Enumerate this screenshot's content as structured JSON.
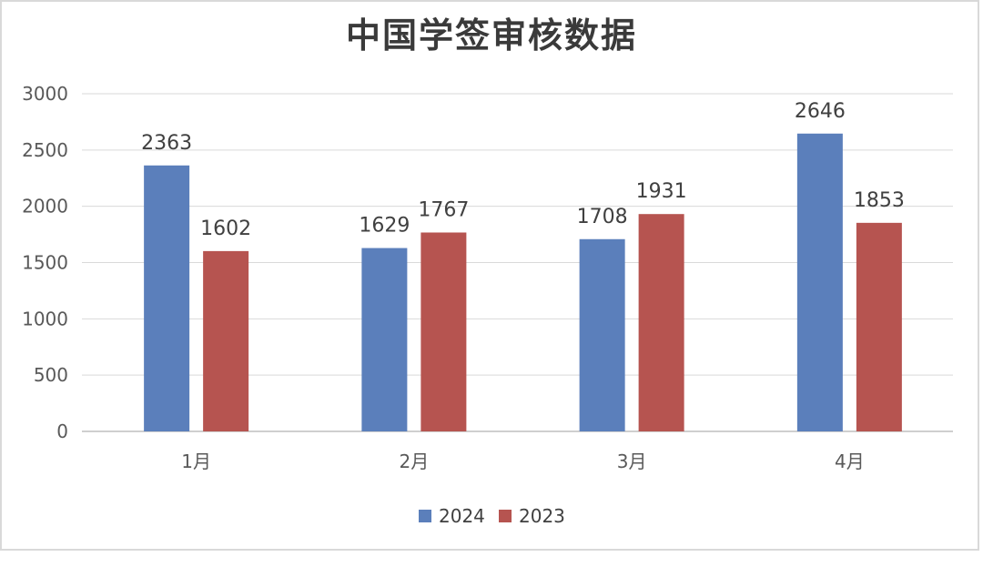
{
  "chart_data": {
    "type": "bar",
    "title": "中国学签审核数据",
    "xlabel": "",
    "ylabel": "",
    "categories": [
      "1月",
      "2月",
      "3月",
      "4月"
    ],
    "series": [
      {
        "name": "2024",
        "values": [
          2363,
          1629,
          1708,
          2646
        ],
        "color": "#5b7fbb"
      },
      {
        "name": "2023",
        "values": [
          1602,
          1767,
          1931,
          1853
        ],
        "color": "#b65450"
      }
    ],
    "ylim": [
      0,
      3000
    ],
    "yticks": [
      "0",
      "500",
      "1000",
      "1500",
      "2000",
      "2500",
      "3000"
    ],
    "grid": true,
    "legend_position": "bottom"
  }
}
